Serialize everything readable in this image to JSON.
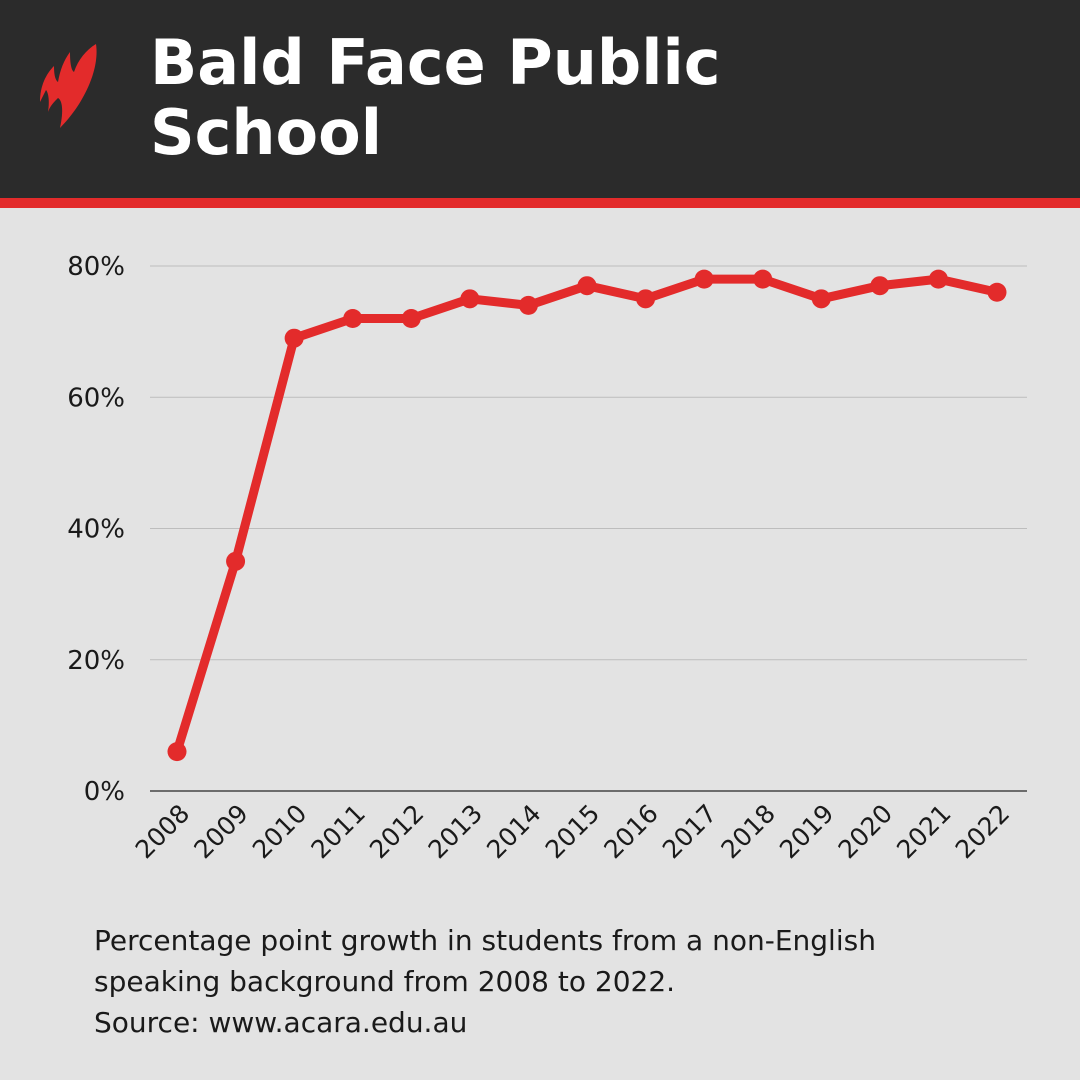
{
  "header": {
    "title_line1": "Bald Face Public",
    "title_line2": "School",
    "logo": "broadcaster-logo"
  },
  "colors": {
    "accent": "#e32b2b",
    "header_bg": "#2b2b2b",
    "background": "#e3e3e3",
    "grid": "#bdbdbd"
  },
  "chart_data": {
    "type": "line",
    "x": [
      "2008",
      "2009",
      "2010",
      "2011",
      "2012",
      "2013",
      "2014",
      "2015",
      "2016",
      "2017",
      "2018",
      "2019",
      "2020",
      "2021",
      "2022"
    ],
    "values": [
      6,
      35,
      69,
      72,
      72,
      75,
      74,
      77,
      75,
      78,
      78,
      75,
      77,
      78,
      76
    ],
    "y_ticks": [
      0,
      20,
      40,
      60,
      80
    ],
    "y_tick_labels": [
      "0%",
      "20%",
      "40%",
      "60%",
      "80%"
    ],
    "ylim": [
      0,
      80
    ],
    "grid": true,
    "markers": true
  },
  "caption": {
    "line1": "Percentage point growth in students from a non-English",
    "line2": "speaking background from 2008 to 2022.",
    "line3": "Source: www.acara.edu.au"
  }
}
